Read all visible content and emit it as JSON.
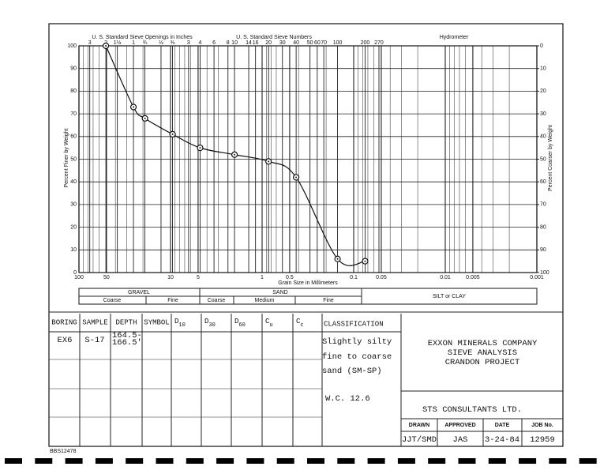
{
  "chart_data": {
    "type": "line",
    "x_label": "Grain Size in Millimeters",
    "y_label": "Percent Finer by Weight",
    "y2_label": "Percent Coarser by Weight",
    "x": [
      50.8,
      25.4,
      19.0,
      9.5,
      4.75,
      2.0,
      0.85,
      0.425,
      0.15,
      0.075
    ],
    "values": [
      100,
      73,
      68,
      61,
      55,
      52,
      49,
      42,
      6,
      5
    ],
    "color": "#111111",
    "log_x": true,
    "xlim": [
      100,
      0.001
    ],
    "xticks": [
      100,
      50,
      10,
      5,
      1,
      0.5,
      0.1,
      0.05,
      0.01,
      0.005,
      0.001
    ],
    "ylim": [
      0,
      100
    ],
    "yticks": [
      0,
      10,
      20,
      30,
      40,
      50,
      60,
      70,
      80,
      90,
      100
    ],
    "y2lim": [
      100,
      0
    ],
    "y2ticks": [
      0,
      10,
      20,
      30,
      40,
      50,
      60,
      70,
      80,
      90,
      100
    ],
    "grid": true
  },
  "sieve_header": {
    "inches_title": "U. S. Standard Sieve Openings in Inches",
    "inches": [
      "3",
      "2",
      "1½",
      "1",
      "¾",
      "½",
      "⅜"
    ],
    "numbers_title": "U. S. Standard Sieve Numbers",
    "numbers": [
      3,
      4,
      6,
      8,
      10,
      14,
      16,
      20,
      30,
      40,
      50,
      60,
      70,
      100,
      200,
      270
    ],
    "hydrometer": "Hydrometer"
  },
  "classification_bar": {
    "gravel": "GRAVEL",
    "gravel_parts": [
      "Coarse",
      "Fine"
    ],
    "sand": "SAND",
    "sand_parts": [
      "Coarse",
      "Medium",
      "Fine"
    ],
    "silt_clay": "SILT or CLAY"
  },
  "table": {
    "headers": [
      "BORING",
      "SAMPLE",
      "DEPTH",
      "SYMBOL"
    ],
    "sub_headers": [
      {
        "base": "D",
        "sub": "10"
      },
      {
        "base": "D",
        "sub": "30"
      },
      {
        "base": "D",
        "sub": "60"
      },
      {
        "base": "C",
        "sub": "u"
      },
      {
        "base": "C",
        "sub": "c"
      }
    ],
    "classification_header": "CLASSIFICATION",
    "boring": "EX6",
    "sample": "S-17",
    "depth": [
      "164.5-",
      "166.5'"
    ],
    "classification": [
      "Slightly silty",
      "fine to coarse",
      "sand (SM-SP)"
    ],
    "water_content": "W.C. 12.6"
  },
  "title_block": {
    "lines": [
      "EXXON MINERALS COMPANY",
      "SIEVE ANALYSIS",
      "CRANDON PROJECT"
    ],
    "consultant": "STS CONSULTANTS LTD.",
    "fields": [
      "DRAWN",
      "APPROVED",
      "DATE",
      "JOB No."
    ],
    "values": [
      "JJT/SMD",
      "JAS",
      "3-24-84",
      "12959"
    ]
  },
  "footer": "BBS12478"
}
